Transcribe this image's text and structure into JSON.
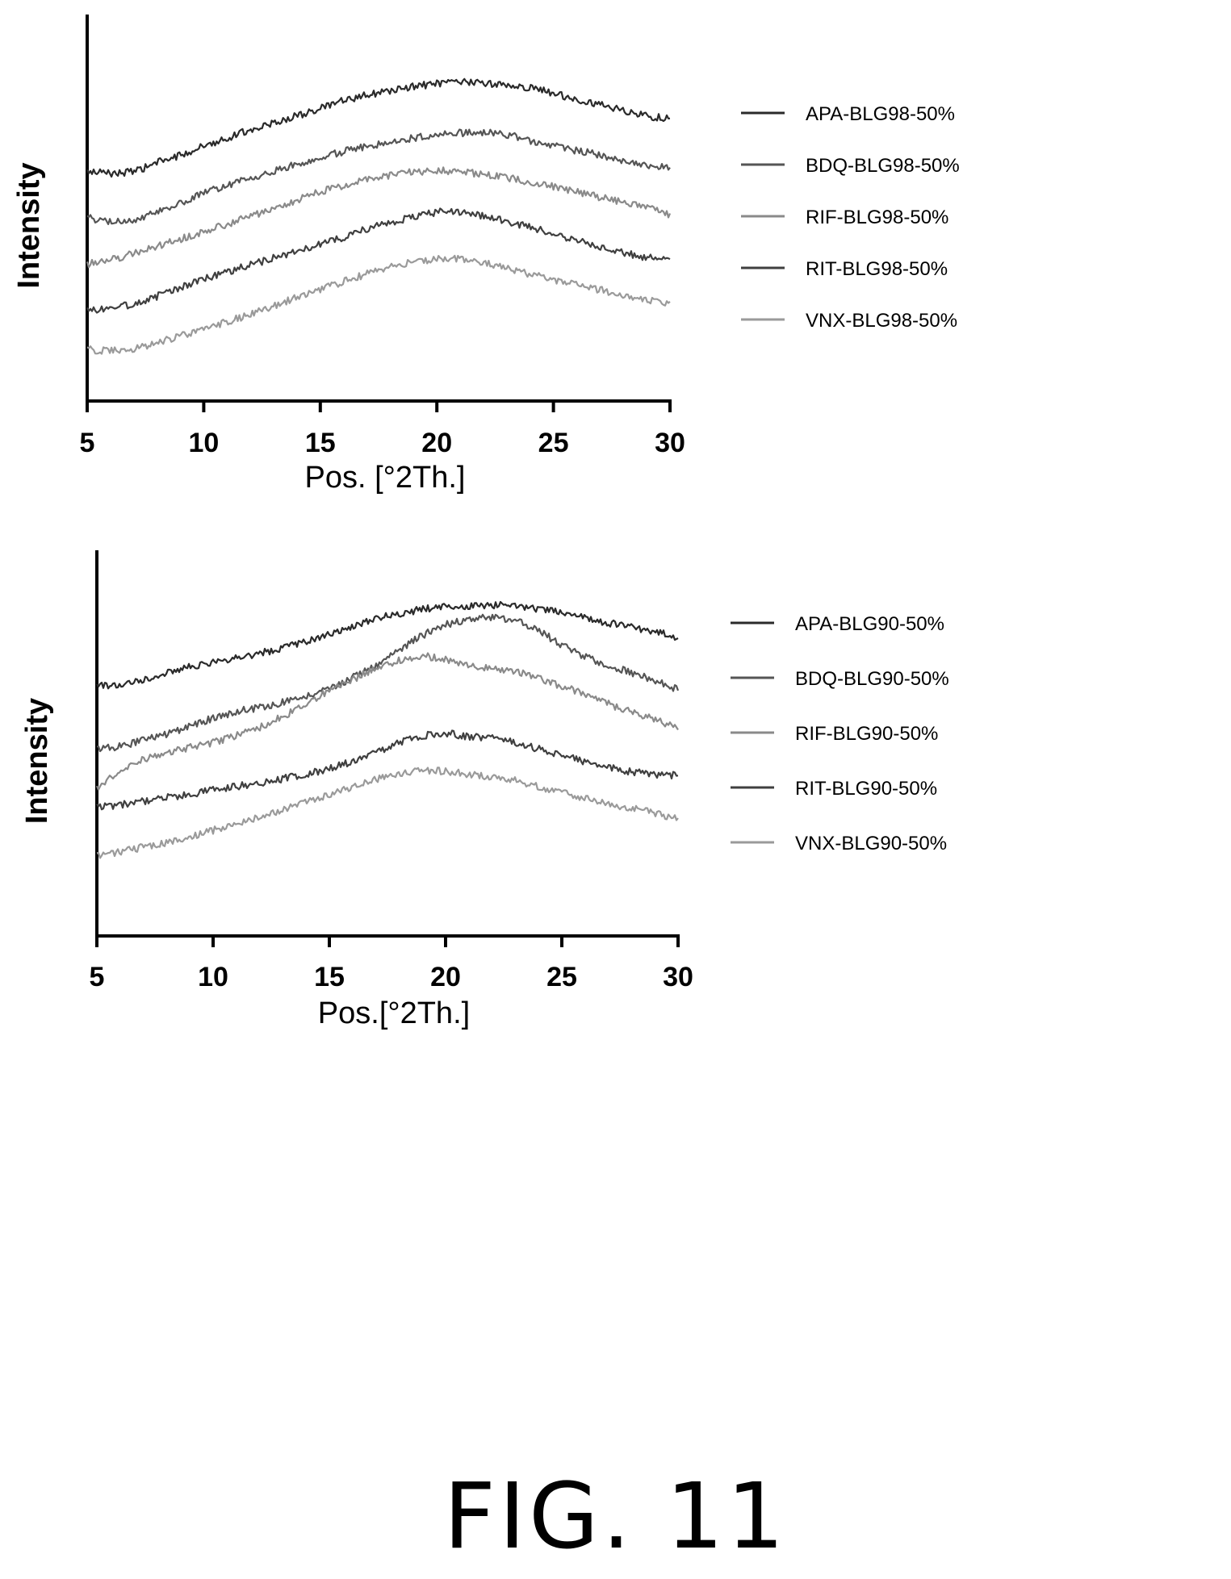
{
  "figure": {
    "caption": "FIG. 11"
  },
  "chart_data": [
    {
      "type": "line",
      "title": "",
      "xlabel": "Pos. [°2Th.]",
      "ylabel": "Intensity",
      "xlim": [
        5,
        30
      ],
      "ylim": [
        0,
        1
      ],
      "y_ticks_labeled": false,
      "x_ticks": [
        "5",
        "10",
        "15",
        "20",
        "25",
        "30"
      ],
      "grid": false,
      "legend_position": "right",
      "x": [
        5,
        6,
        7,
        8,
        9,
        10,
        11,
        12,
        13,
        14,
        15,
        16,
        17,
        18,
        19,
        20,
        21,
        22,
        23,
        24,
        25,
        26,
        27,
        28,
        29,
        30
      ],
      "series": [
        {
          "name": "APA-BLG98-50%",
          "color": "#2a2a2a",
          "values": [
            0.63,
            0.626,
            0.629,
            0.658,
            0.68,
            0.709,
            0.733,
            0.758,
            0.778,
            0.8,
            0.822,
            0.846,
            0.863,
            0.876,
            0.889,
            0.898,
            0.902,
            0.9,
            0.893,
            0.885,
            0.87,
            0.85,
            0.835,
            0.815,
            0.8,
            0.79
          ]
        },
        {
          "name": "BDQ-BLG98-50%",
          "color": "#555555",
          "values": [
            0.49,
            0.478,
            0.482,
            0.506,
            0.536,
            0.565,
            0.59,
            0.61,
            0.632,
            0.654,
            0.673,
            0.692,
            0.708,
            0.72,
            0.732,
            0.741,
            0.748,
            0.749,
            0.744,
            0.725,
            0.708,
            0.695,
            0.68,
            0.664,
            0.65,
            0.64
          ]
        },
        {
          "name": "RIF-BLG98-50%",
          "color": "#8a8a8a",
          "values": [
            0.35,
            0.363,
            0.382,
            0.404,
            0.425,
            0.449,
            0.471,
            0.495,
            0.519,
            0.545,
            0.57,
            0.589,
            0.607,
            0.62,
            0.63,
            0.634,
            0.63,
            0.623,
            0.612,
            0.6,
            0.584,
            0.57,
            0.553,
            0.536,
            0.52,
            0.5
          ]
        },
        {
          "name": "RIT-BLG98-50%",
          "color": "#3f3f3f",
          "values": [
            0.21,
            0.213,
            0.229,
            0.252,
            0.279,
            0.304,
            0.326,
            0.347,
            0.368,
            0.389,
            0.409,
            0.431,
            0.456,
            0.477,
            0.494,
            0.508,
            0.507,
            0.497,
            0.48,
            0.462,
            0.442,
            0.422,
            0.403,
            0.385,
            0.37,
            0.36
          ]
        },
        {
          "name": "VNX-BLG98-50%",
          "color": "#9a9a9a",
          "values": [
            0.09,
            0.085,
            0.092,
            0.11,
            0.132,
            0.151,
            0.174,
            0.198,
            0.223,
            0.248,
            0.272,
            0.297,
            0.32,
            0.34,
            0.357,
            0.366,
            0.364,
            0.353,
            0.337,
            0.32,
            0.302,
            0.286,
            0.271,
            0.255,
            0.24,
            0.23
          ]
        }
      ]
    },
    {
      "type": "line",
      "title": "",
      "xlabel": "Pos.[°2Th.]",
      "ylabel": "Intensity",
      "xlim": [
        5,
        30
      ],
      "ylim": [
        0,
        1
      ],
      "y_ticks_labeled": false,
      "x_ticks": [
        "5",
        "10",
        "15",
        "20",
        "25",
        "30"
      ],
      "grid": false,
      "legend_position": "right",
      "x": [
        5,
        6,
        7,
        8,
        9,
        10,
        11,
        12,
        13,
        14,
        15,
        16,
        17,
        18,
        19,
        20,
        21,
        22,
        23,
        24,
        25,
        26,
        27,
        28,
        29,
        30
      ],
      "series": [
        {
          "name": "APA-BLG90-50%",
          "color": "#2a2a2a",
          "values": [
            0.65,
            0.658,
            0.672,
            0.69,
            0.709,
            0.724,
            0.736,
            0.75,
            0.767,
            0.787,
            0.807,
            0.834,
            0.857,
            0.871,
            0.884,
            0.892,
            0.895,
            0.898,
            0.896,
            0.886,
            0.874,
            0.86,
            0.843,
            0.829,
            0.815,
            0.8
          ]
        },
        {
          "name": "BDQ-BLG90-50%",
          "color": "#555555",
          "values": [
            0.46,
            0.468,
            0.486,
            0.506,
            0.53,
            0.554,
            0.574,
            0.586,
            0.601,
            0.62,
            0.643,
            0.677,
            0.715,
            0.76,
            0.805,
            0.837,
            0.855,
            0.862,
            0.852,
            0.82,
            0.775,
            0.74,
            0.715,
            0.692,
            0.668,
            0.64
          ]
        },
        {
          "name": "RIF-BLG90-50%",
          "color": "#8a8a8a",
          "values": [
            0.34,
            0.392,
            0.428,
            0.447,
            0.466,
            0.48,
            0.5,
            0.525,
            0.559,
            0.597,
            0.637,
            0.672,
            0.703,
            0.728,
            0.743,
            0.734,
            0.714,
            0.706,
            0.696,
            0.674,
            0.652,
            0.624,
            0.597,
            0.572,
            0.551,
            0.52
          ]
        },
        {
          "name": "RIT-BLG90-50%",
          "color": "#3f3f3f",
          "values": [
            0.285,
            0.29,
            0.302,
            0.312,
            0.322,
            0.335,
            0.347,
            0.357,
            0.37,
            0.384,
            0.4,
            0.423,
            0.451,
            0.478,
            0.501,
            0.508,
            0.498,
            0.492,
            0.48,
            0.46,
            0.441,
            0.42,
            0.404,
            0.391,
            0.383,
            0.38
          ]
        },
        {
          "name": "VNX-BLG90-50%",
          "color": "#9a9a9a",
          "values": [
            0.135,
            0.148,
            0.162,
            0.177,
            0.194,
            0.213,
            0.232,
            0.252,
            0.274,
            0.297,
            0.32,
            0.346,
            0.368,
            0.384,
            0.394,
            0.392,
            0.384,
            0.376,
            0.364,
            0.346,
            0.327,
            0.31,
            0.295,
            0.28,
            0.265,
            0.25
          ]
        }
      ]
    }
  ]
}
